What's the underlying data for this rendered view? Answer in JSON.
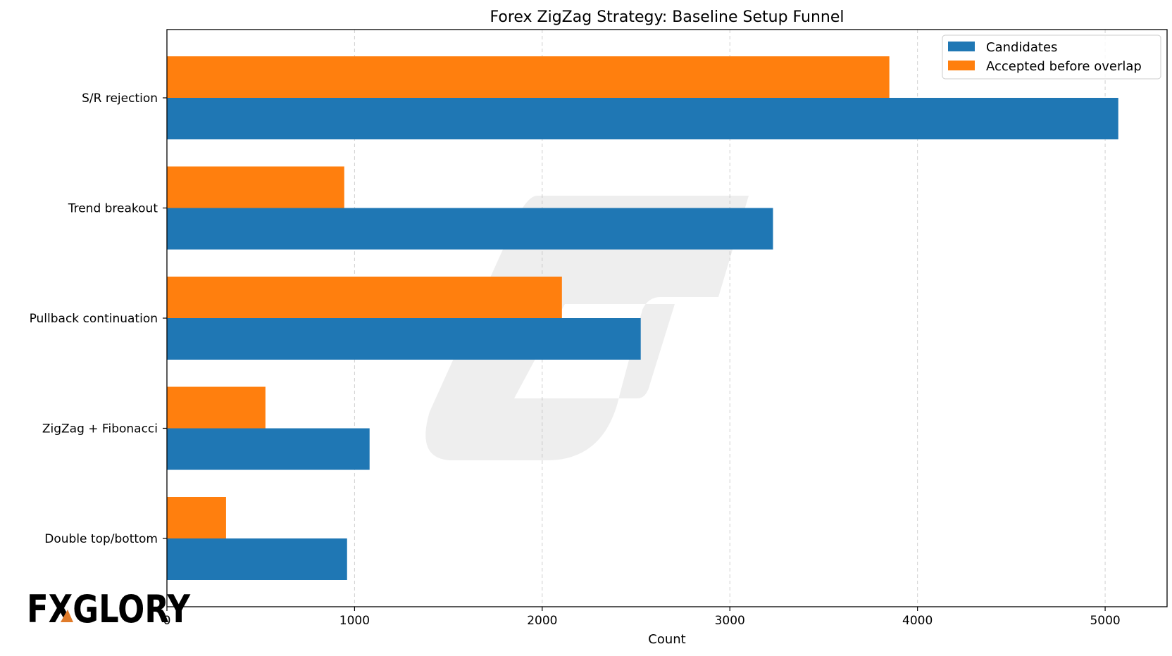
{
  "chart_data": {
    "type": "bar",
    "orientation": "horizontal",
    "title": "Forex ZigZag Strategy: Baseline Setup Funnel",
    "xlabel": "Count",
    "ylabel": "",
    "categories": [
      "S/R rejection",
      "Trend breakout",
      "Pullback continuation",
      "ZigZag + Fibonacci",
      "Double top/bottom"
    ],
    "series": [
      {
        "name": "Candidates",
        "color": "#1f77b4",
        "values": [
          5070,
          3230,
          2525,
          1080,
          960
        ]
      },
      {
        "name": "Accepted before overlap",
        "color": "#ff7f0e",
        "values": [
          3850,
          945,
          2105,
          525,
          315
        ]
      }
    ],
    "xlim": [
      0,
      5330
    ],
    "xticks": [
      0,
      1000,
      2000,
      3000,
      4000,
      5000
    ],
    "xtick_labels": [
      "0",
      "1000",
      "2000",
      "3000",
      "4000",
      "5000"
    ],
    "grid": {
      "x": true,
      "y": false,
      "style": "dashed"
    },
    "legend": {
      "position": "top-right"
    }
  },
  "watermark": {
    "logo_text": "FXGLORY",
    "logo_color": "#555555",
    "accent_color": "#e07b2a",
    "background_mark": "G-shape-icon"
  }
}
